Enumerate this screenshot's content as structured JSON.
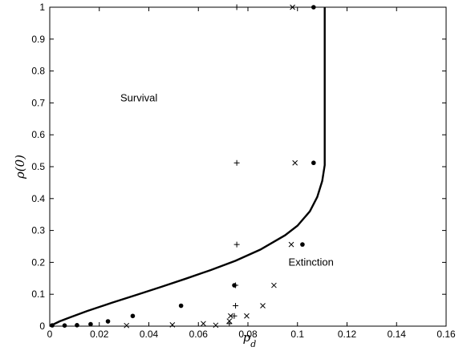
{
  "chart_data": {
    "type": "line",
    "xlabel": "p_d",
    "ylabel": "ρ(0)",
    "xlim": [
      0,
      0.16
    ],
    "ylim": [
      0,
      1
    ],
    "x_ticks": [
      "0",
      "0.02",
      "0.04",
      "0.06",
      "0.08",
      "0.1",
      "0.12",
      "0.14",
      "0.16"
    ],
    "y_ticks": [
      "0",
      "0.1",
      "0.2",
      "0.3",
      "0.4",
      "0.5",
      "0.6",
      "0.7",
      "0.8",
      "0.9",
      "1"
    ],
    "grid": false,
    "regions": [
      {
        "text": "Survival",
        "x": 0.036,
        "y": 0.705
      },
      {
        "text": "Extinction",
        "x": 0.1055,
        "y": 0.19
      }
    ],
    "curve": {
      "x": [
        0,
        0.004,
        0.008,
        0.015,
        0.025,
        0.035,
        0.045,
        0.055,
        0.065,
        0.075,
        0.085,
        0.095,
        0.1,
        0.105,
        0.108,
        0.11,
        0.111,
        0.111
      ],
      "y": [
        0,
        0.015,
        0.027,
        0.047,
        0.073,
        0.098,
        0.123,
        0.149,
        0.176,
        0.205,
        0.24,
        0.285,
        0.315,
        0.36,
        0.405,
        0.455,
        0.505,
        1.0
      ]
    },
    "markers": [
      {
        "name": "dot",
        "symbol": "dot",
        "x": [
          0.001,
          0.006,
          0.011,
          0.0165,
          0.0235,
          0.0335,
          0.053,
          0.0745,
          0.102,
          0.1065,
          0.1065
        ],
        "y": [
          0.0025,
          0.002,
          0.003,
          0.006,
          0.015,
          0.032,
          0.064,
          0.128,
          0.256,
          0.512,
          1.0
        ]
      },
      {
        "name": "cross",
        "symbol": "x",
        "x": [
          0.031,
          0.0495,
          0.062,
          0.067,
          0.0725,
          0.073,
          0.0795,
          0.086,
          0.0905,
          0.0975,
          0.099,
          0.098
        ],
        "y": [
          0.002,
          0.004,
          0.008,
          0.003,
          0.016,
          0.032,
          0.032,
          0.064,
          0.128,
          0.256,
          0.512,
          1.0
        ]
      },
      {
        "name": "plus",
        "symbol": "+",
        "x": [
          0.0725,
          0.0745,
          0.075,
          0.075,
          0.0755,
          0.0755,
          0.0755
        ],
        "y": [
          0.008,
          0.032,
          0.064,
          0.128,
          0.256,
          0.512,
          1.0
        ]
      }
    ]
  }
}
